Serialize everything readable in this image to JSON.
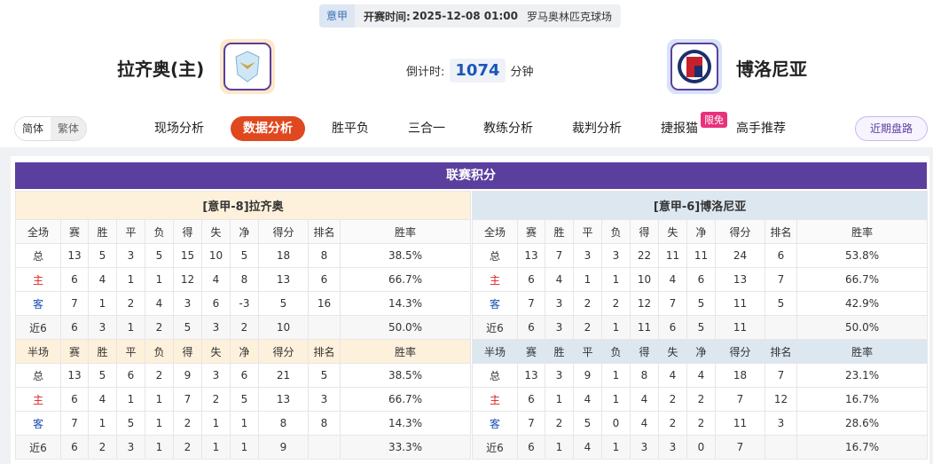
{
  "top_bar": {
    "league": "意甲",
    "time_label": "开赛时间:",
    "time": "2025-12-08 01:00",
    "venue": "罗马奥林匹克球场"
  },
  "match": {
    "home": "拉齐奥(主)",
    "away": "博洛尼亚",
    "countdown_label": "倒计时:",
    "countdown": "1074",
    "countdown_unit": "分钟"
  },
  "language": [
    "简体",
    "繁体"
  ],
  "nav": {
    "items": [
      "现场分析",
      "数据分析",
      "胜平负",
      "三合一",
      "教练分析",
      "裁判分析",
      "捷报猫",
      "高手推荐"
    ],
    "active": 1,
    "badge": "限免",
    "right": "近期盘路"
  },
  "standings": {
    "title": "联赛积分",
    "tables": [
      {
        "title": "[意甲-8]拉齐奥",
        "sections": [
          {
            "header": [
              "全场",
              "赛",
              "胜",
              "平",
              "负",
              "得",
              "失",
              "净",
              "得分",
              "排名",
              "胜率"
            ],
            "rows": [
              [
                "总",
                "13",
                "5",
                "3",
                "5",
                "15",
                "10",
                "5",
                "18",
                "8",
                "38.5%"
              ],
              [
                "主",
                "6",
                "4",
                "1",
                "1",
                "12",
                "4",
                "8",
                "13",
                "6",
                "66.7%"
              ],
              [
                "客",
                "7",
                "1",
                "2",
                "4",
                "3",
                "6",
                "-3",
                "5",
                "16",
                "14.3%"
              ],
              [
                "近6",
                "6",
                "3",
                "1",
                "2",
                "5",
                "3",
                "2",
                "10",
                null,
                "50.0%"
              ]
            ]
          },
          {
            "header": [
              "半场",
              "赛",
              "胜",
              "平",
              "负",
              "得",
              "失",
              "净",
              "得分",
              "排名",
              "胜率"
            ],
            "rows": [
              [
                "总",
                "13",
                "5",
                "6",
                "2",
                "9",
                "3",
                "6",
                "21",
                "5",
                "38.5%"
              ],
              [
                "主",
                "6",
                "4",
                "1",
                "1",
                "7",
                "2",
                "5",
                "13",
                "3",
                "66.7%"
              ],
              [
                "客",
                "7",
                "1",
                "5",
                "1",
                "2",
                "1",
                "1",
                "8",
                "8",
                "14.3%"
              ],
              [
                "近6",
                "6",
                "2",
                "3",
                "1",
                "2",
                "1",
                "1",
                "9",
                null,
                "33.3%"
              ]
            ]
          }
        ]
      },
      {
        "title": "[意甲-6]博洛尼亚",
        "sections": [
          {
            "header": [
              "全场",
              "赛",
              "胜",
              "平",
              "负",
              "得",
              "失",
              "净",
              "得分",
              "排名",
              "胜率"
            ],
            "rows": [
              [
                "总",
                "13",
                "7",
                "3",
                "3",
                "22",
                "11",
                "11",
                "24",
                "6",
                "53.8%"
              ],
              [
                "主",
                "6",
                "4",
                "1",
                "1",
                "10",
                "4",
                "6",
                "13",
                "7",
                "66.7%"
              ],
              [
                "客",
                "7",
                "3",
                "2",
                "2",
                "12",
                "7",
                "5",
                "11",
                "5",
                "42.9%"
              ],
              [
                "近6",
                "6",
                "3",
                "2",
                "1",
                "11",
                "6",
                "5",
                "11",
                null,
                "50.0%"
              ]
            ]
          },
          {
            "header": [
              "半场",
              "赛",
              "胜",
              "平",
              "负",
              "得",
              "失",
              "净",
              "得分",
              "排名",
              "胜率"
            ],
            "rows": [
              [
                "总",
                "13",
                "3",
                "9",
                "1",
                "8",
                "4",
                "4",
                "18",
                "7",
                "23.1%"
              ],
              [
                "主",
                "6",
                "1",
                "4",
                "1",
                "4",
                "2",
                "2",
                "7",
                "12",
                "16.7%"
              ],
              [
                "客",
                "7",
                "2",
                "5",
                "0",
                "4",
                "2",
                "2",
                "11",
                "3",
                "28.6%"
              ],
              [
                "近6",
                "6",
                "1",
                "4",
                "1",
                "3",
                "3",
                "0",
                "7",
                null,
                "16.7%"
              ]
            ]
          }
        ]
      }
    ]
  }
}
